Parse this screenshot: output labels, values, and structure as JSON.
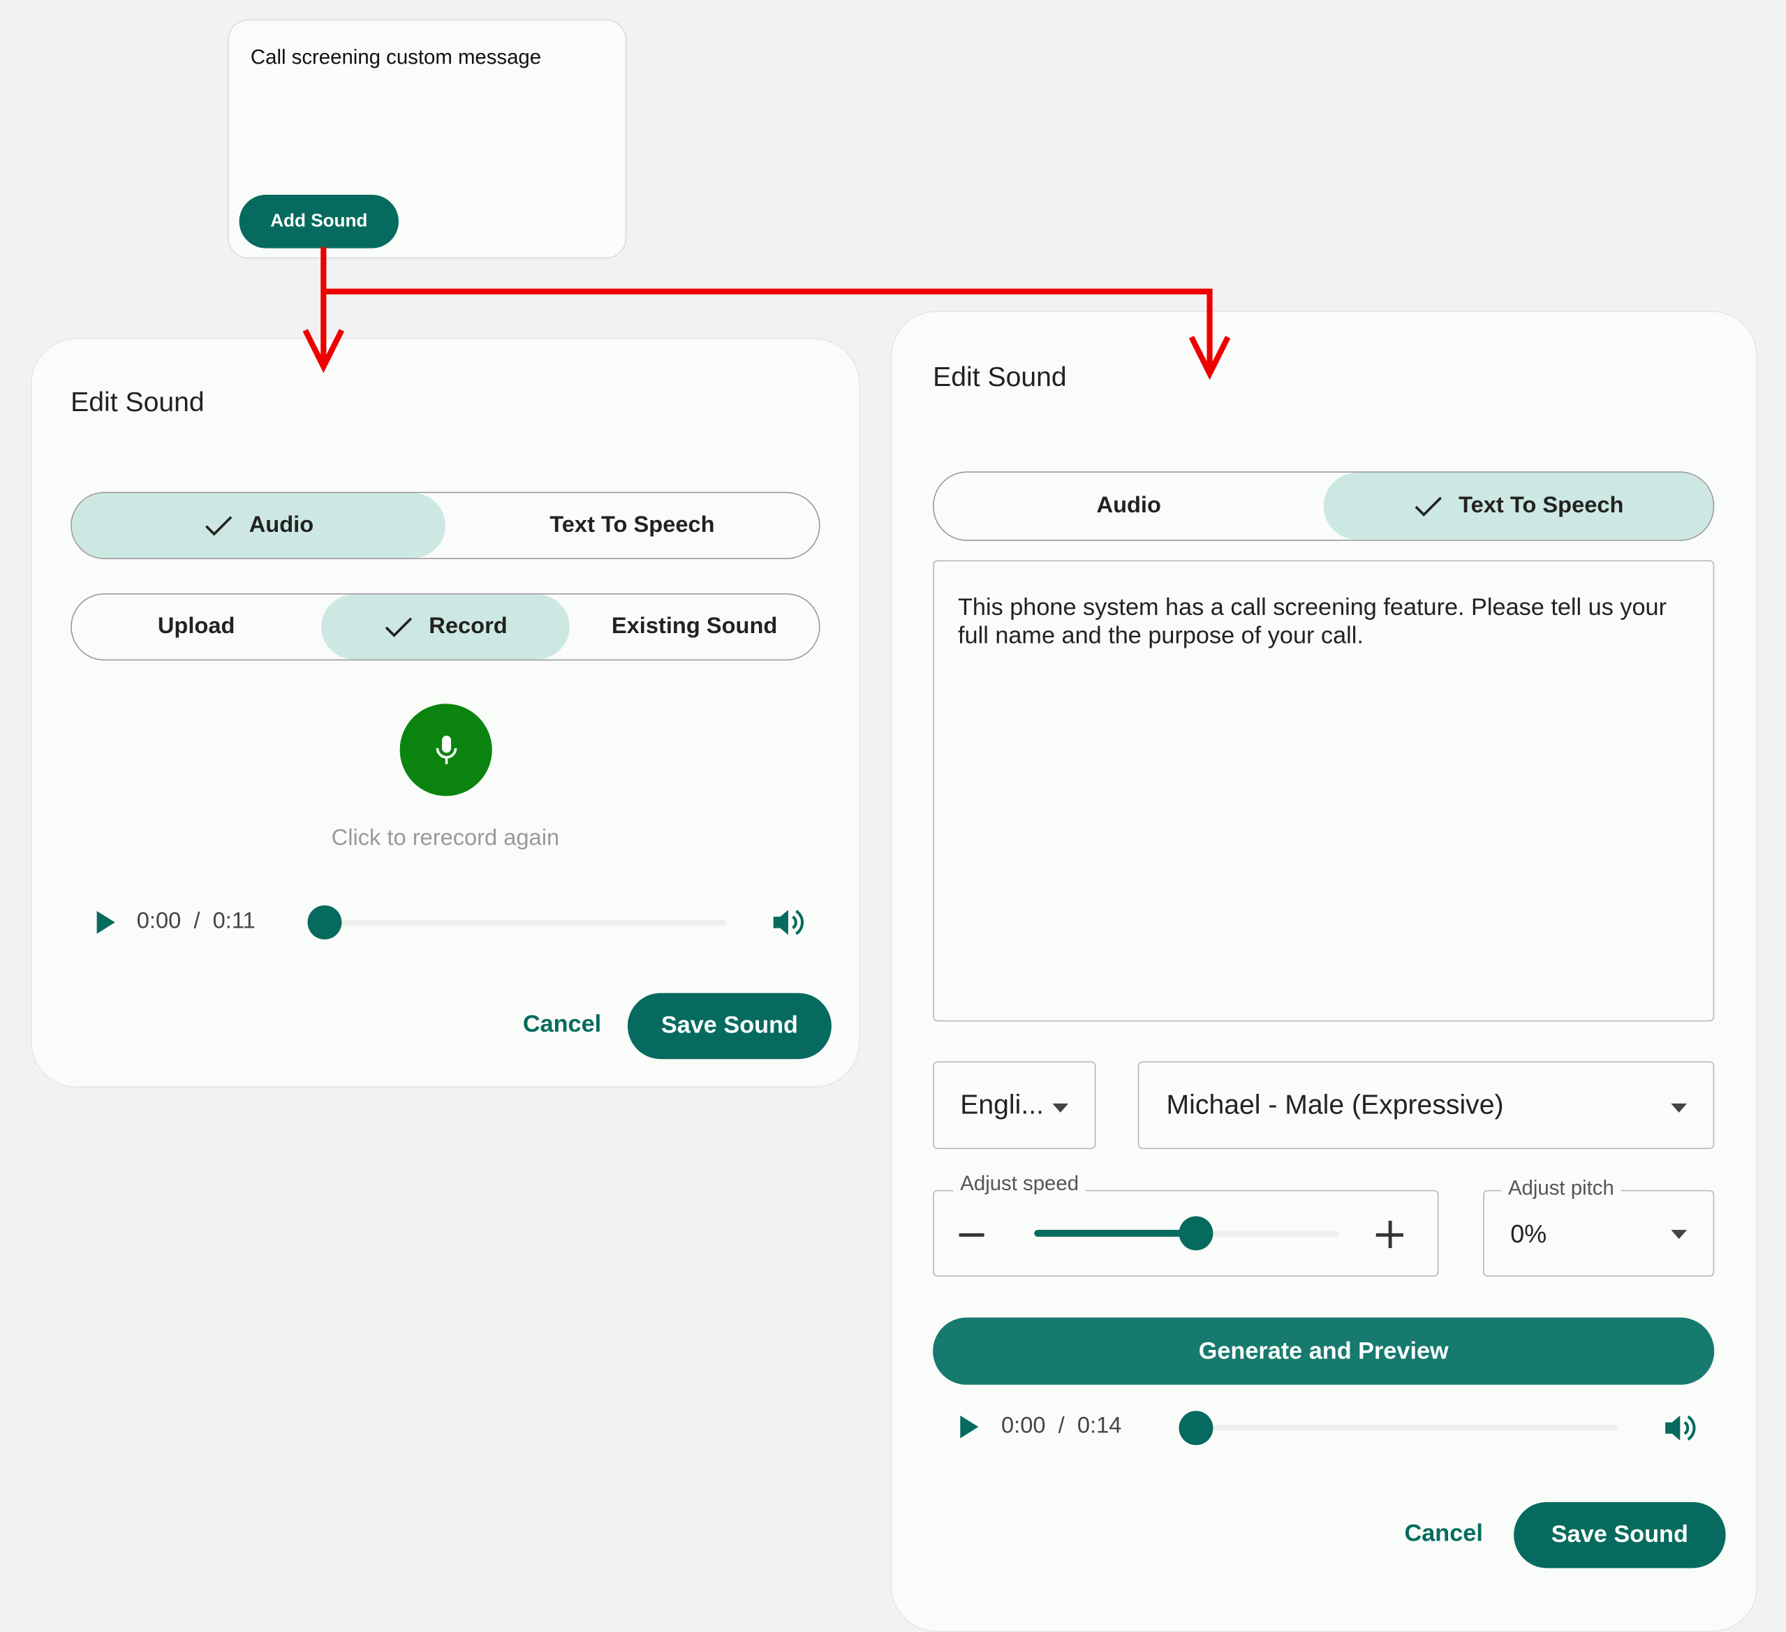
{
  "card": {
    "title": "Call screening custom message",
    "add_button": "Add Sound"
  },
  "left_dialog": {
    "title": "Edit Sound",
    "source_tabs": [
      {
        "label": "Audio",
        "selected": true
      },
      {
        "label": "Text To Speech",
        "selected": false
      }
    ],
    "mode_tabs": [
      {
        "label": "Upload",
        "selected": false
      },
      {
        "label": "Record",
        "selected": true
      },
      {
        "label": "Existing Sound",
        "selected": false
      }
    ],
    "record_hint": "Click to rerecord again",
    "player": {
      "current": "0:00",
      "separator": "/",
      "duration": "0:11",
      "progress": 0
    },
    "cancel": "Cancel",
    "save": "Save Sound"
  },
  "right_dialog": {
    "title": "Edit Sound",
    "source_tabs": [
      {
        "label": "Audio",
        "selected": false
      },
      {
        "label": "Text To Speech",
        "selected": true
      }
    ],
    "text": "This phone system has a call screening feature. Please tell us your full name and the purpose of your call.",
    "language": "Engli...",
    "voice": "Michael - Male (Expressive)",
    "speed": {
      "label": "Adjust speed",
      "value_fraction": 0.53
    },
    "pitch": {
      "label": "Adjust pitch",
      "value": "0%"
    },
    "generate": "Generate and Preview",
    "player": {
      "current": "0:00",
      "separator": "/",
      "duration": "0:14",
      "progress": 0
    },
    "cancel": "Cancel",
    "save": "Save Sound"
  },
  "colors": {
    "primary": "#066b5e",
    "selected_tab": "#cde8e2",
    "mic": "#0b840f",
    "arrow": "#ee0000"
  }
}
